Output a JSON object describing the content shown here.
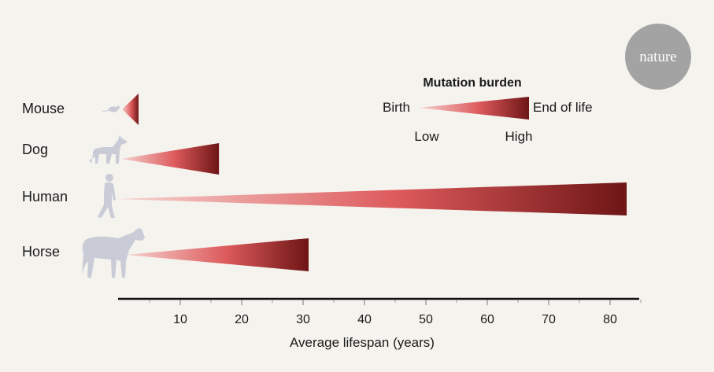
{
  "logo": {
    "text": "nature"
  },
  "colors": {
    "background": "#f5f3ee",
    "wedge_start": "#f6d3d0",
    "wedge_mid": "#dd5a5c",
    "wedge_end": "#6e1515",
    "silhouette": "#c9ccd6",
    "logo_circle": "#a3a3a3",
    "axis": "#111111"
  },
  "legend": {
    "title": "Mutation burden",
    "start_label": "Birth",
    "end_label": "End of life",
    "low_label": "Low",
    "high_label": "High"
  },
  "chart_data": {
    "type": "bar",
    "title": "",
    "xlabel": "Average lifespan (years)",
    "ylabel": "",
    "categories": [
      "Mouse",
      "Dog",
      "Human",
      "Horse"
    ],
    "values": [
      3.2,
      16.3,
      82.7,
      30.9
    ],
    "icons": [
      "mouse-icon",
      "dog-icon",
      "human-icon",
      "horse-icon"
    ],
    "xlim": [
      0,
      85
    ],
    "xticks": [
      10,
      20,
      30,
      40,
      50,
      60,
      70,
      80
    ],
    "xminor_ticks": [
      5,
      15,
      25,
      35,
      45,
      55,
      65,
      75,
      85
    ],
    "grid": false,
    "bar_style": "wedge gradient (low mutation burden at birth to high at end of life)",
    "legend_position": "top-right"
  }
}
